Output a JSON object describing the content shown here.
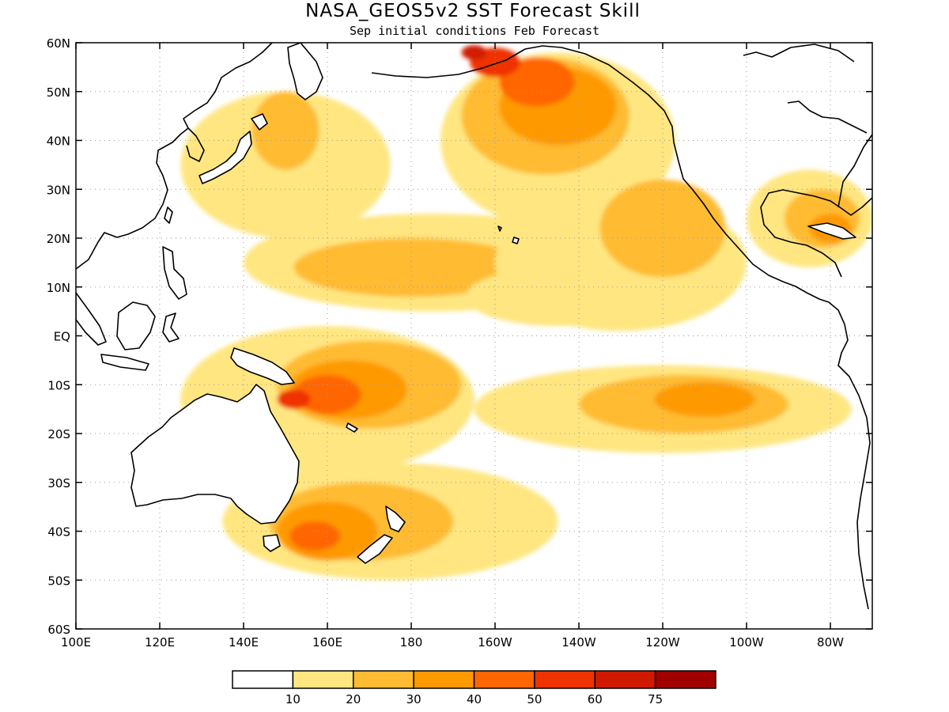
{
  "title": "NASA_GEOS5v2 SST Forecast Skill",
  "subtitle": "Sep initial conditions  Feb Forecast",
  "map": {
    "lon_range": [
      100,
      290
    ],
    "lat_range": [
      -60,
      60
    ],
    "lon_ticks": [
      {
        "value": 100,
        "label": "100E"
      },
      {
        "value": 120,
        "label": "120E"
      },
      {
        "value": 140,
        "label": "140E"
      },
      {
        "value": 160,
        "label": "160E"
      },
      {
        "value": 180,
        "label": "180"
      },
      {
        "value": 200,
        "label": "160W"
      },
      {
        "value": 220,
        "label": "140W"
      },
      {
        "value": 240,
        "label": "120W"
      },
      {
        "value": 260,
        "label": "100W"
      },
      {
        "value": 280,
        "label": "80W"
      }
    ],
    "lat_ticks": [
      {
        "value": 60,
        "label": "60N"
      },
      {
        "value": 50,
        "label": "50N"
      },
      {
        "value": 40,
        "label": "40N"
      },
      {
        "value": 30,
        "label": "30N"
      },
      {
        "value": 20,
        "label": "20N"
      },
      {
        "value": 10,
        "label": "10N"
      },
      {
        "value": 0,
        "label": "EQ"
      },
      {
        "value": -10,
        "label": "10S"
      },
      {
        "value": -20,
        "label": "20S"
      },
      {
        "value": -30,
        "label": "30S"
      },
      {
        "value": -40,
        "label": "40S"
      },
      {
        "value": -50,
        "label": "50S"
      },
      {
        "value": -60,
        "label": "60S"
      }
    ],
    "grid": true
  },
  "colorbar": {
    "colors": [
      "#ffffff",
      "#ffe680",
      "#ffbb33",
      "#ff9900",
      "#ff6600",
      "#ee3300",
      "#d01a00",
      "#a00000"
    ],
    "labels": [
      "10",
      "20",
      "30",
      "40",
      "50",
      "60",
      "75"
    ]
  },
  "skill_regions": [
    {
      "level": 1,
      "lon": 160,
      "lat": -13,
      "rx": 35,
      "ry": 15
    },
    {
      "level": 2,
      "lon": 170,
      "lat": -10,
      "rx": 22,
      "ry": 9
    },
    {
      "level": 3,
      "lon": 165,
      "lat": -11,
      "rx": 14,
      "ry": 6
    },
    {
      "level": 4,
      "lon": 160,
      "lat": -12,
      "rx": 8,
      "ry": 4
    },
    {
      "level": 5,
      "lon": 152,
      "lat": -13,
      "rx": 4,
      "ry": 2
    },
    {
      "level": 1,
      "lon": 185,
      "lat": 15,
      "rx": 45,
      "ry": 10
    },
    {
      "level": 2,
      "lon": 180,
      "lat": 14,
      "rx": 28,
      "ry": 6
    },
    {
      "level": 1,
      "lon": 215,
      "lat": 8,
      "rx": 22,
      "ry": 6
    },
    {
      "level": 1,
      "lon": 240,
      "lat": -15,
      "rx": 45,
      "ry": 9
    },
    {
      "level": 2,
      "lon": 245,
      "lat": -14,
      "rx": 25,
      "ry": 6
    },
    {
      "level": 3,
      "lon": 250,
      "lat": -13,
      "rx": 12,
      "ry": 3.5
    },
    {
      "level": 1,
      "lon": 215,
      "lat": 40,
      "rx": 28,
      "ry": 18
    },
    {
      "level": 2,
      "lon": 212,
      "lat": 45,
      "rx": 20,
      "ry": 12
    },
    {
      "level": 3,
      "lon": 215,
      "lat": 47,
      "rx": 14,
      "ry": 8
    },
    {
      "level": 4,
      "lon": 210,
      "lat": 52,
      "rx": 9,
      "ry": 5
    },
    {
      "level": 5,
      "lon": 200,
      "lat": 56,
      "rx": 6,
      "ry": 3
    },
    {
      "level": 6,
      "lon": 195,
      "lat": 58,
      "rx": 3,
      "ry": 1.5
    },
    {
      "level": 1,
      "lon": 150,
      "lat": 35,
      "rx": 25,
      "ry": 15
    },
    {
      "level": 2,
      "lon": 150,
      "lat": 42,
      "rx": 8,
      "ry": 8
    },
    {
      "level": 1,
      "lon": 175,
      "lat": -38,
      "rx": 40,
      "ry": 12
    },
    {
      "level": 2,
      "lon": 168,
      "lat": -38,
      "rx": 22,
      "ry": 8
    },
    {
      "level": 3,
      "lon": 160,
      "lat": -40,
      "rx": 12,
      "ry": 6
    },
    {
      "level": 4,
      "lon": 157,
      "lat": -41,
      "rx": 6,
      "ry": 3
    },
    {
      "level": 1,
      "lon": 275,
      "lat": 24,
      "rx": 15,
      "ry": 10
    },
    {
      "level": 2,
      "lon": 278,
      "lat": 24,
      "rx": 9,
      "ry": 6
    },
    {
      "level": 3,
      "lon": 280,
      "lat": 22,
      "rx": 5,
      "ry": 3
    },
    {
      "level": 1,
      "lon": 230,
      "lat": 15,
      "rx": 30,
      "ry": 14
    },
    {
      "level": 2,
      "lon": 240,
      "lat": 22,
      "rx": 15,
      "ry": 10
    }
  ]
}
